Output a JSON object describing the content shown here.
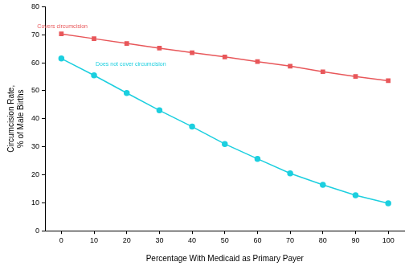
{
  "chart_data": {
    "type": "line",
    "x_label": "Percentage With Medicaid as Primary Payer",
    "y_label": [
      "Circumcision Rate,",
      "% of Male Births"
    ],
    "x": [
      0,
      10,
      20,
      30,
      40,
      50,
      60,
      70,
      80,
      90,
      100
    ],
    "series": [
      {
        "name": "Covers circumcision",
        "color": "#e8575a",
        "marker": "square",
        "line_style": "solid",
        "values": [
          70.3,
          68.6,
          66.9,
          65.2,
          63.6,
          62.1,
          60.4,
          58.8,
          56.8,
          55.1,
          53.6
        ]
      },
      {
        "name": "Does not cover circumcision",
        "color": "#1ccfdf",
        "marker": "circle",
        "line_style": "solid",
        "values": [
          61.5,
          55.5,
          49.2,
          43.0,
          37.2,
          31.0,
          25.7,
          20.5,
          16.4,
          12.7,
          9.8
        ]
      }
    ],
    "xlim": [
      -5,
      105
    ],
    "xticks": [
      0,
      10,
      20,
      30,
      40,
      50,
      60,
      70,
      80,
      90,
      100
    ],
    "ylim": [
      0,
      80
    ],
    "yticks": [
      0,
      10,
      20,
      30,
      40,
      50,
      60,
      70,
      80
    ],
    "grid": false
  }
}
